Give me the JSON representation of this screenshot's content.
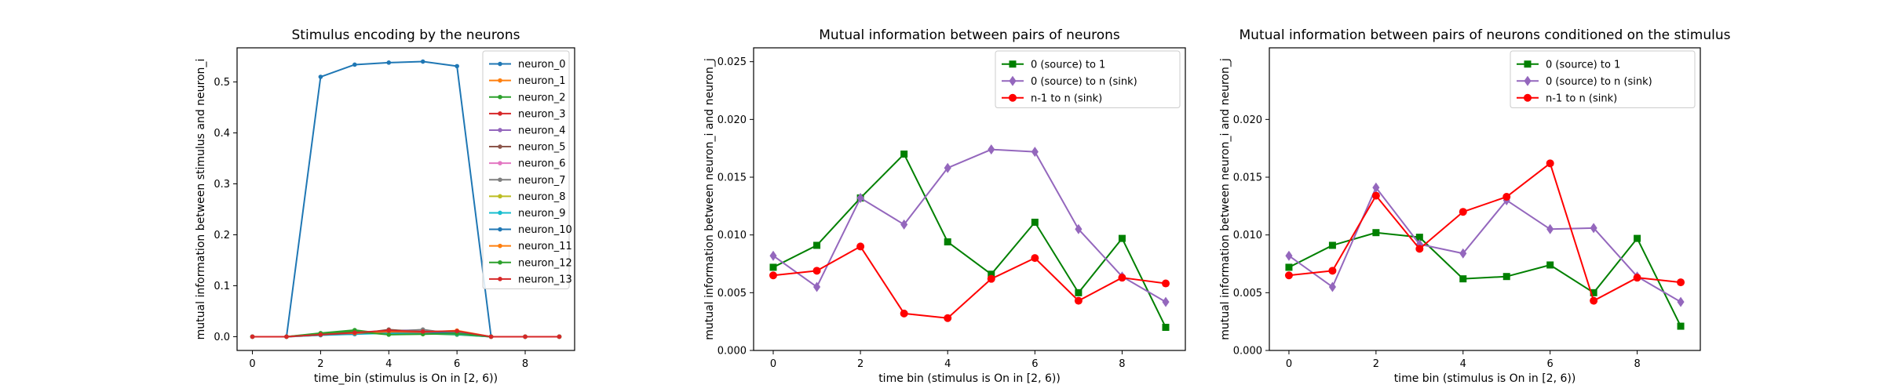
{
  "chart_data": [
    {
      "type": "line",
      "title": "Stimulus encoding by the neurons",
      "xlabel": "time_bin (stimulus is On in [2, 6))",
      "ylabel": "mutual information between stimulus and neuron_i",
      "xlim": [
        -0.45,
        9.45
      ],
      "ylim": [
        -0.027,
        0.567
      ],
      "xticks": [
        0,
        2,
        4,
        6,
        8
      ],
      "yticks": [
        0.0,
        0.1,
        0.2,
        0.3,
        0.4,
        0.5
      ],
      "ytick_decimals": 1,
      "legend_position": "upper right",
      "x": [
        0,
        1,
        2,
        3,
        4,
        5,
        6,
        7,
        8,
        9
      ],
      "series": [
        {
          "name": "neuron_0",
          "color": "#1f77b4",
          "marker": "dot",
          "values": [
            0.0,
            0.0,
            0.51,
            0.534,
            0.538,
            0.54,
            0.531,
            0.0,
            0.0,
            0.0
          ]
        },
        {
          "name": "neuron_1",
          "color": "#ff7f0e",
          "marker": "dot",
          "values": [
            0.0,
            0.0,
            0.003,
            0.006,
            0.009,
            0.005,
            0.008,
            0.0,
            0.0,
            0.0
          ]
        },
        {
          "name": "neuron_2",
          "color": "#2ca02c",
          "marker": "dot",
          "values": [
            0.0,
            0.0,
            0.007,
            0.013,
            0.005,
            0.006,
            0.004,
            0.0,
            0.0,
            0.0
          ]
        },
        {
          "name": "neuron_3",
          "color": "#d62728",
          "marker": "dot",
          "values": [
            0.0,
            0.0,
            0.004,
            0.006,
            0.011,
            0.008,
            0.009,
            0.0,
            0.0,
            0.0
          ]
        },
        {
          "name": "neuron_4",
          "color": "#9467bd",
          "marker": "dot",
          "values": [
            0.0,
            0.0,
            0.005,
            0.008,
            0.012,
            0.013,
            0.006,
            0.0,
            0.0,
            0.0
          ]
        },
        {
          "name": "neuron_5",
          "color": "#8c564b",
          "marker": "dot",
          "values": [
            0.0,
            0.0,
            0.004,
            0.005,
            0.014,
            0.009,
            0.007,
            0.0,
            0.0,
            0.0
          ]
        },
        {
          "name": "neuron_6",
          "color": "#e377c2",
          "marker": "dot",
          "values": [
            0.0,
            0.0,
            0.003,
            0.007,
            0.008,
            0.012,
            0.006,
            0.0,
            0.0,
            0.0
          ]
        },
        {
          "name": "neuron_7",
          "color": "#7f7f7f",
          "marker": "dot",
          "values": [
            0.0,
            0.0,
            0.005,
            0.006,
            0.01,
            0.014,
            0.005,
            0.0,
            0.0,
            0.0
          ]
        },
        {
          "name": "neuron_8",
          "color": "#bcbd22",
          "marker": "dot",
          "values": [
            0.0,
            0.0,
            0.004,
            0.009,
            0.006,
            0.007,
            0.008,
            0.0,
            0.0,
            0.0
          ]
        },
        {
          "name": "neuron_9",
          "color": "#17becf",
          "marker": "dot",
          "values": [
            0.0,
            0.0,
            0.003,
            0.005,
            0.007,
            0.006,
            0.005,
            0.0,
            0.0,
            0.0
          ]
        },
        {
          "name": "neuron_10",
          "color": "#1f77b4",
          "marker": "dot",
          "values": [
            0.0,
            0.0,
            0.004,
            0.006,
            0.009,
            0.008,
            0.007,
            0.0,
            0.0,
            0.0
          ]
        },
        {
          "name": "neuron_11",
          "color": "#ff7f0e",
          "marker": "dot",
          "values": [
            0.0,
            0.0,
            0.005,
            0.007,
            0.01,
            0.009,
            0.012,
            0.0,
            0.0,
            0.0
          ]
        },
        {
          "name": "neuron_12",
          "color": "#2ca02c",
          "marker": "dot",
          "values": [
            0.0,
            0.0,
            0.006,
            0.01,
            0.004,
            0.005,
            0.006,
            0.0,
            0.0,
            0.0
          ]
        },
        {
          "name": "neuron_13",
          "color": "#d62728",
          "marker": "dot",
          "values": [
            0.0,
            0.0,
            0.004,
            0.008,
            0.012,
            0.01,
            0.011,
            0.0,
            0.0,
            0.0
          ]
        }
      ]
    },
    {
      "type": "line",
      "title": "Mutual information between pairs of neurons",
      "xlabel": "time bin (stimulus is On in [2, 6))",
      "ylabel": "mutual information between neuron_i and neuron_j",
      "xlim": [
        -0.45,
        9.45
      ],
      "ylim": [
        0.0,
        0.0262
      ],
      "xticks": [
        0,
        2,
        4,
        6,
        8
      ],
      "yticks": [
        0.0,
        0.005,
        0.01,
        0.015,
        0.02,
        0.025
      ],
      "ytick_decimals": 3,
      "legend_position": "upper right",
      "x": [
        0,
        1,
        2,
        3,
        4,
        5,
        6,
        7,
        8,
        9
      ],
      "series": [
        {
          "name": "0 (source) to 1",
          "color": "#008000",
          "marker": "square",
          "values": [
            0.0072,
            0.0091,
            0.0132,
            0.017,
            0.0094,
            0.0066,
            0.0111,
            0.005,
            0.0097,
            0.002
          ]
        },
        {
          "name": "0 (source) to n (sink)",
          "color": "#9467bd",
          "marker": "diamond",
          "values": [
            0.0082,
            0.0055,
            0.0132,
            0.0109,
            0.0158,
            0.0174,
            0.0172,
            0.0105,
            0.0064,
            0.0042
          ]
        },
        {
          "name": "n-1 to n (sink)",
          "color": "#ff0000",
          "marker": "circle",
          "values": [
            0.0065,
            0.0069,
            0.009,
            0.0032,
            0.0028,
            0.0062,
            0.008,
            0.0043,
            0.0063,
            0.0058
          ]
        }
      ]
    },
    {
      "type": "line",
      "title": "Mutual information between pairs of neurons conditioned on the stimulus",
      "xlabel": "time bin (stimulus is On in [2, 6))",
      "ylabel": "mutual information between neuron_i and neuron_j",
      "xlim": [
        -0.45,
        9.45
      ],
      "ylim": [
        0.0,
        0.0262
      ],
      "xticks": [
        0,
        2,
        4,
        6,
        8
      ],
      "yticks": [
        0.0,
        0.005,
        0.01,
        0.015,
        0.02
      ],
      "ytick_decimals": 3,
      "legend_position": "upper right",
      "x": [
        0,
        1,
        2,
        3,
        4,
        5,
        6,
        7,
        8,
        9
      ],
      "series": [
        {
          "name": "0 (source) to 1",
          "color": "#008000",
          "marker": "square",
          "values": [
            0.0072,
            0.0091,
            0.0102,
            0.0098,
            0.0062,
            0.0064,
            0.0074,
            0.005,
            0.0097,
            0.0021
          ]
        },
        {
          "name": "0 (source) to n (sink)",
          "color": "#9467bd",
          "marker": "diamond",
          "values": [
            0.0082,
            0.0055,
            0.0141,
            0.0092,
            0.0084,
            0.013,
            0.0105,
            0.0106,
            0.0064,
            0.0042
          ]
        },
        {
          "name": "n-1 to n (sink)",
          "color": "#ff0000",
          "marker": "circle",
          "values": [
            0.0065,
            0.0069,
            0.0134,
            0.0088,
            0.012,
            0.0133,
            0.0162,
            0.0043,
            0.0063,
            0.0059
          ]
        }
      ]
    }
  ]
}
